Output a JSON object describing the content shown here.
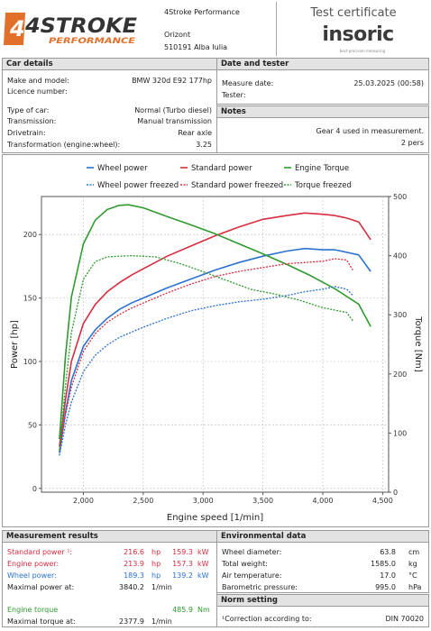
{
  "header": {
    "logo_main": "4STROKE",
    "logo_sub": "PERFORMANCE",
    "company": "4Stroke Performance",
    "address_line1": "Orizont",
    "address_line2": "510191 Alba Iulia",
    "cert_title": "Test certificate",
    "brand": "insoric",
    "brand_tagline": "best precision measuring"
  },
  "car_details": {
    "title": "Car details",
    "rows": [
      {
        "label": "Make and model:",
        "value": "BMW 320d E92 177hp"
      },
      {
        "label": "Licence number:",
        "value": ""
      },
      {
        "label": "Type of car:",
        "value": "Normal (Turbo diesel)"
      },
      {
        "label": "Transmission:",
        "value": "Manual transmission"
      },
      {
        "label": "Drivetrain:",
        "value": "Rear axle"
      },
      {
        "label": "Transformation (engine:wheel):",
        "value": "3.25"
      }
    ]
  },
  "date_tester": {
    "title": "Date and tester",
    "measure_label": "Measure date:",
    "measure_value": "25.03.2025 (00:58)",
    "tester_label": "Tester:",
    "tester_value": ""
  },
  "notes": {
    "title": "Notes",
    "line1": "Gear 4 used in measurement.",
    "line2": "2 pers"
  },
  "measurement": {
    "title": "Measurement results",
    "standard": {
      "label": "Standard power ¹:",
      "hp": "216.6",
      "kw": "159.3",
      "color": "#d62d3f"
    },
    "engine": {
      "label": "Engine power:",
      "hp": "213.9",
      "kw": "157.3",
      "color": "#d62d3f"
    },
    "wheel": {
      "label": "Wheel power:",
      "hp": "189.3",
      "kw": "139.2",
      "color": "#2b72d0"
    },
    "max_power": {
      "label": "Maximal power at:",
      "value": "3840.2",
      "unit": "1/min"
    },
    "torque": {
      "label": "Engine torque",
      "value": "485.9",
      "unit": "Nm",
      "color": "#2f9a2f"
    },
    "max_torque": {
      "label": "Maximal torque at:",
      "value": "2377.9",
      "unit": "1/min"
    },
    "hp_unit": "hp",
    "kw_unit": "kW"
  },
  "environment": {
    "title": "Environmental data",
    "rows": [
      {
        "label": "Wheel diameter:",
        "value": "63.8",
        "unit": "cm"
      },
      {
        "label": "Total weight:",
        "value": "1585.0",
        "unit": "kg"
      },
      {
        "label": "Air temperature:",
        "value": "17.0",
        "unit": "°C"
      },
      {
        "label": "Barometric pressure:",
        "value": "995.0",
        "unit": "hPa"
      }
    ]
  },
  "norm": {
    "title": "Norm setting",
    "label": "¹Correction according to:",
    "value": "DIN 70020"
  },
  "chart_data": {
    "type": "line",
    "xlabel": "Engine speed [1/min]",
    "ylabel": "Power [hp]",
    "y2label": "Torque [Nm]",
    "xlim": [
      1650,
      4550
    ],
    "ylim": [
      -3,
      230
    ],
    "y2lim": [
      0,
      500
    ],
    "xticks": [
      "2,000",
      "2,500",
      "3,000",
      "3,500",
      "4,000",
      "4,500"
    ],
    "yticks": [
      "0",
      "50",
      "100",
      "150",
      "200"
    ],
    "y2ticks": [
      "0",
      "100",
      "200",
      "300",
      "400",
      "500"
    ],
    "grid": true,
    "legend_placement": "top",
    "series": [
      {
        "name": "Wheel power",
        "axis": "left",
        "style": "solid",
        "color": "#2b72d0",
        "x": [
          1800,
          1850,
          1900,
          2000,
          2100,
          2200,
          2300,
          2400,
          2500,
          2700,
          2900,
          3100,
          3300,
          3500,
          3700,
          3850,
          4000,
          4100,
          4200,
          4300,
          4400
        ],
        "y": [
          28,
          60,
          85,
          112,
          125,
          134,
          141,
          146,
          150,
          158,
          165,
          172,
          178,
          183,
          187,
          189,
          188,
          188,
          186,
          184,
          171
        ]
      },
      {
        "name": "Standard power",
        "axis": "left",
        "style": "solid",
        "color": "#d62d3f",
        "x": [
          1800,
          1850,
          1900,
          2000,
          2100,
          2200,
          2300,
          2400,
          2500,
          2700,
          2900,
          3100,
          3300,
          3500,
          3700,
          3850,
          4000,
          4100,
          4200,
          4300,
          4400
        ],
        "y": [
          33,
          70,
          100,
          130,
          145,
          155,
          162,
          168,
          173,
          183,
          191,
          199,
          206,
          212,
          215,
          217,
          216,
          215,
          213,
          210,
          196
        ]
      },
      {
        "name": "Engine Torque",
        "axis": "right",
        "style": "solid",
        "color": "#2f9a2f",
        "x": [
          1800,
          1850,
          1900,
          2000,
          2100,
          2200,
          2300,
          2378,
          2500,
          2700,
          2900,
          3100,
          3300,
          3500,
          3700,
          3900,
          4100,
          4300,
          4400
        ],
        "y": [
          90,
          230,
          330,
          420,
          460,
          478,
          485,
          486,
          481,
          466,
          452,
          437,
          420,
          403,
          385,
          366,
          344,
          318,
          280
        ]
      },
      {
        "name": "Wheel power freezed",
        "axis": "left",
        "style": "dotted",
        "color": "#2b72d0",
        "x": [
          1800,
          1850,
          1900,
          2000,
          2100,
          2200,
          2300,
          2400,
          2500,
          2700,
          2900,
          3100,
          3300,
          3500,
          3700,
          3850,
          4000,
          4100,
          4200,
          4250
        ],
        "y": [
          26,
          50,
          68,
          92,
          105,
          113,
          119,
          123,
          127,
          134,
          140,
          144,
          147,
          149,
          152,
          155,
          157,
          159,
          157,
          152
        ]
      },
      {
        "name": "Standard power freezed",
        "axis": "left",
        "style": "dotted",
        "color": "#d62d3f",
        "x": [
          1800,
          1850,
          1900,
          2000,
          2100,
          2200,
          2300,
          2400,
          2500,
          2700,
          2900,
          3100,
          3300,
          3500,
          3700,
          3850,
          4000,
          4100,
          4200,
          4250
        ],
        "y": [
          30,
          58,
          80,
          108,
          122,
          131,
          137,
          142,
          146,
          154,
          161,
          167,
          171,
          174,
          177,
          178,
          179,
          181,
          180,
          172
        ]
      },
      {
        "name": "Torque freezed",
        "axis": "right",
        "style": "dotted",
        "color": "#2f9a2f",
        "x": [
          1800,
          1850,
          1900,
          2000,
          2100,
          2200,
          2400,
          2600,
          2800,
          3000,
          3200,
          3400,
          3600,
          3800,
          4000,
          4100,
          4200,
          4250
        ],
        "y": [
          70,
          180,
          270,
          360,
          390,
          398,
          400,
          398,
          387,
          373,
          358,
          343,
          335,
          325,
          312,
          308,
          304,
          290
        ]
      }
    ]
  }
}
